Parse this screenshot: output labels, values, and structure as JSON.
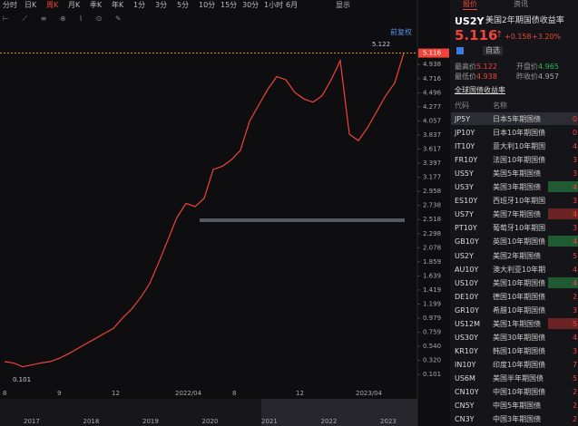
{
  "toolbar": {
    "tabs": [
      "分时",
      "日K",
      "周K",
      "月K",
      "季K",
      "年K",
      "1分",
      "3分",
      "5分",
      "10分",
      "15分",
      "30分",
      "1小时",
      "6月"
    ],
    "selected": 2,
    "display": "显示"
  },
  "chart_label": "前复权",
  "chart_data": {
    "type": "line",
    "color": "#f0433a",
    "ylim": [
      -0.11,
      5.52
    ],
    "values": [
      0.3,
      0.28,
      0.22,
      0.25,
      0.28,
      0.3,
      0.35,
      0.42,
      0.5,
      0.58,
      0.66,
      0.74,
      0.82,
      0.98,
      1.12,
      1.3,
      1.52,
      1.85,
      2.2,
      2.55,
      2.77,
      2.72,
      2.85,
      3.3,
      3.35,
      3.45,
      3.6,
      4.05,
      4.3,
      4.55,
      4.75,
      4.7,
      4.5,
      4.4,
      4.35,
      4.45,
      4.7,
      5.0,
      3.85,
      3.75,
      3.95,
      4.2,
      4.45,
      4.65,
      5.116
    ],
    "yticks": [
      4.938,
      4.716,
      4.496,
      4.277,
      4.057,
      3.837,
      3.617,
      3.397,
      3.177,
      2.958,
      2.738,
      2.518,
      2.298,
      2.078,
      1.859,
      1.639,
      1.419,
      1.199,
      0.979,
      0.759,
      {
        "value": 0.54,
        "label": "0.540"
      },
      {
        "value": 0.32,
        "label": "0.320"
      },
      0.101
    ],
    "last_price": 5.116,
    "high": 5.122,
    "low": 0.101,
    "x_labels": [
      "8",
      "9",
      "12",
      "2022/04",
      "8",
      "12",
      "2023/04"
    ],
    "navigator_years": [
      "2017",
      "2018",
      "2019",
      "2020",
      "2021",
      "2022",
      "2023"
    ]
  },
  "quote": {
    "tabs": [
      "报价",
      "资讯"
    ],
    "code": "US2Y",
    "name": "美国2年期国债收益率",
    "price": "5.116",
    "change": "+0.158",
    "change_pct": "+3.20%",
    "watch": "自选",
    "stats": [
      [
        "最高价",
        "5.122"
      ],
      [
        "开盘价",
        "4.965"
      ],
      [
        "最低价",
        "4.938"
      ],
      [
        "昨收价",
        "4.957"
      ]
    ]
  },
  "list": {
    "title": "全球国债收益率",
    "columns": [
      "代码",
      "名称"
    ],
    "rows": [
      [
        "JP5Y",
        "日本5年期国债",
        "0"
      ],
      [
        "JP10Y",
        "日本10年期国债",
        "0"
      ],
      [
        "IT10Y",
        "意大利10年期国",
        "4"
      ],
      [
        "FR10Y",
        "法国10年期国债",
        "3"
      ],
      [
        "US5Y",
        "美国5年期国债",
        "3"
      ],
      [
        "US3Y",
        "美国3年期国债",
        "4"
      ],
      [
        "ES10Y",
        "西班牙10年期国",
        "3"
      ],
      [
        "US7Y",
        "美国7年期国债",
        "4"
      ],
      [
        "PT10Y",
        "葡萄牙10年期国",
        "3"
      ],
      [
        "GB10Y",
        "英国10年期国债",
        "4"
      ],
      [
        "US2Y",
        "美国2年期国债",
        "5"
      ],
      [
        "AU10Y",
        "澳大利亚10年期",
        "4"
      ],
      [
        "US10Y",
        "美国10年期国债",
        "4"
      ],
      [
        "DE10Y",
        "德国10年期国债",
        "2"
      ],
      [
        "GR10Y",
        "希腊10年期国债",
        "3"
      ],
      [
        "US12M",
        "美国1年期国债",
        "5"
      ],
      [
        "US30Y",
        "美国30年期国债",
        "4"
      ],
      [
        "KR10Y",
        "韩国10年期国债",
        "3"
      ],
      [
        "IN10Y",
        "印度10年期国债",
        "7"
      ],
      [
        "US6M",
        "美国半年期国债",
        "5"
      ],
      [
        "CN10Y",
        "中国10年期国债",
        "2"
      ],
      [
        "CN5Y",
        "中国5年期国债",
        "2"
      ],
      [
        "CN3Y",
        "中国3年期国债",
        "2"
      ]
    ]
  }
}
